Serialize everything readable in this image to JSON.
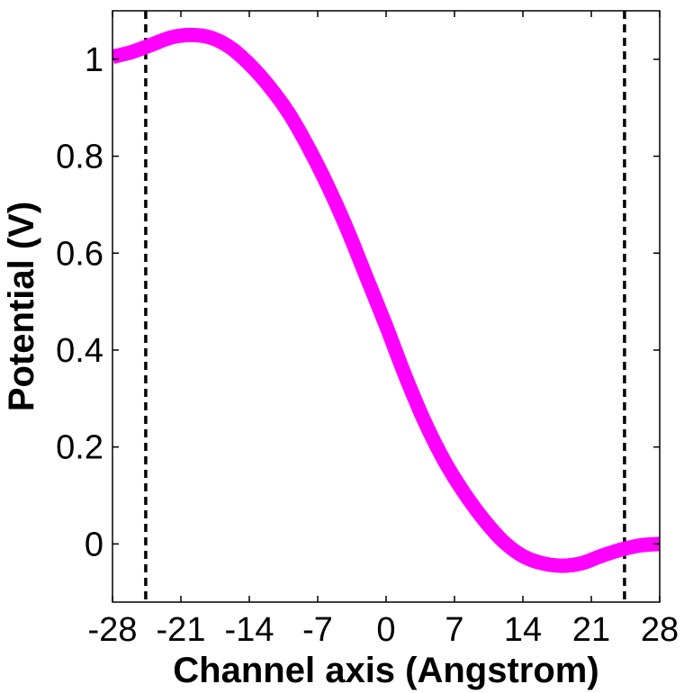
{
  "chart_data": {
    "type": "line",
    "title": "",
    "xlabel": "Channel axis (Angstrom)",
    "ylabel": "Potential (V)",
    "xlim": [
      -28,
      28
    ],
    "ylim": [
      -0.12,
      1.1
    ],
    "xticks": [
      -28,
      -21,
      -14,
      -7,
      0,
      7,
      14,
      21,
      28
    ],
    "xtick_labels": [
      "-28",
      "-21",
      "-14",
      "-7",
      "0",
      "7",
      "14",
      "21",
      "28"
    ],
    "yticks": [
      0,
      0.2,
      0.4,
      0.6,
      0.8,
      1
    ],
    "ytick_labels": [
      "0",
      "0.2",
      "0.4",
      "0.6",
      "0.8",
      "1"
    ],
    "grid": false,
    "colors": {
      "curve": "#ff00ff",
      "reference_lines": "#000000"
    },
    "series": [
      {
        "style": "solid thick",
        "x": [
          -28,
          -26,
          -24,
          -22,
          -20,
          -18,
          -16,
          -14,
          -12,
          -10,
          -8,
          -6,
          -4,
          -2,
          0,
          2,
          4,
          6,
          8,
          10,
          12,
          14,
          16,
          18,
          20,
          22,
          24,
          26,
          28
        ],
        "y": [
          1.005,
          1.015,
          1.03,
          1.045,
          1.05,
          1.045,
          1.025,
          0.99,
          0.945,
          0.89,
          0.82,
          0.74,
          0.65,
          0.55,
          0.45,
          0.345,
          0.25,
          0.17,
          0.105,
          0.05,
          0.005,
          -0.025,
          -0.04,
          -0.045,
          -0.04,
          -0.025,
          -0.012,
          -0.003,
          0.0
        ]
      }
    ],
    "reference_lines": [
      {
        "orientation": "vertical",
        "x": -24.6,
        "style": "dashed"
      },
      {
        "orientation": "vertical",
        "x": 24.4,
        "style": "dashed"
      }
    ]
  }
}
